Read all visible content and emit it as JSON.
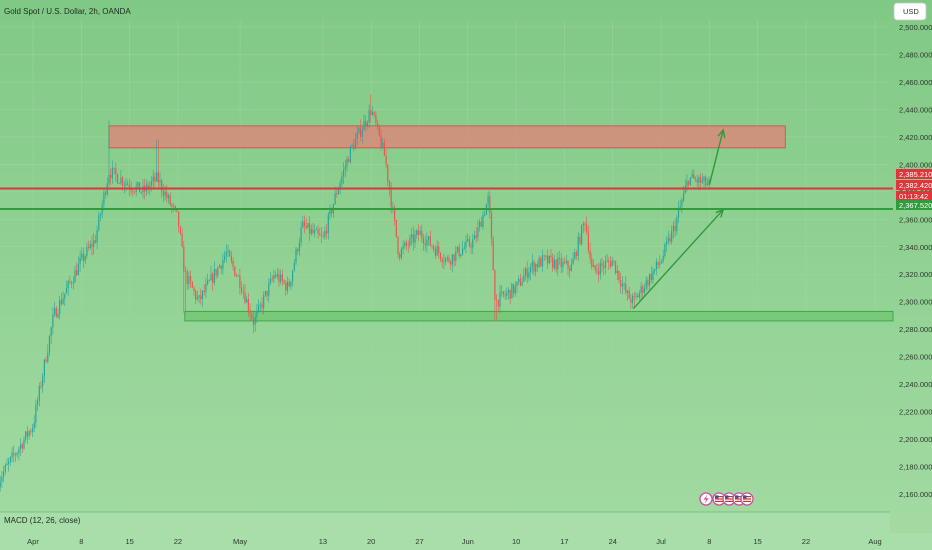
{
  "header": {
    "title": "Gold Spot / U.S. Dollar, 2h, OANDA",
    "currency_button": "USD"
  },
  "indicator": {
    "label": "MACD (12, 26, close)"
  },
  "price_tags": [
    {
      "value": "2,385.210",
      "color": "#e0353b"
    },
    {
      "value": "2,382.420",
      "color": "#e0353b"
    },
    {
      "value": "01:13:42",
      "color": "#e0353b"
    },
    {
      "value": "2,367.520",
      "color": "#2f9e3a"
    }
  ],
  "event_icons": [
    "lightning-icon",
    "us-flag-icon",
    "us-flag-icon",
    "us-flag-icon",
    "us-flag-icon"
  ],
  "colors": {
    "background": "#8ccf8e",
    "resistance_zone": "#d9897a",
    "support_zone": "#74c977",
    "resistance_line": "#e0353b",
    "support_line": "#2f9e3a",
    "arrow": "#2e9a3c",
    "up_candle": "#26a69a",
    "down_candle": "#ef5350"
  },
  "chart_data": {
    "type": "candlestick",
    "title": "Gold Spot / U.S. Dollar, 2h, OANDA",
    "y_ticks": [
      2160,
      2180,
      2200,
      2220,
      2240,
      2260,
      2280,
      2300,
      2320,
      2340,
      2360,
      2380,
      2400,
      2420,
      2440,
      2460,
      2480,
      2500
    ],
    "y_tick_labels": [
      "2,160.000",
      "2,180.000",
      "2,200.000",
      "2,220.000",
      "2,240.000",
      "2,260.000",
      "2,280.000",
      "2,300.000",
      "2,320.000",
      "2,340.000",
      "2,360.000",
      "2,380.000",
      "2,400.000",
      "2,420.000",
      "2,440.000",
      "2,460.000",
      "2,480.000",
      "2,500.000"
    ],
    "ylim": [
      2153,
      2510
    ],
    "x_ticks": [
      "Apr",
      "8",
      "15",
      "22",
      "May",
      "13",
      "20",
      "27",
      "Jun",
      "10",
      "17",
      "24",
      "Jul",
      "8",
      "15",
      "22",
      "Aug"
    ],
    "x_tick_dates": [
      "2024-04-01",
      "2024-04-08",
      "2024-04-15",
      "2024-04-22",
      "2024-05-01",
      "2024-05-13",
      "2024-05-20",
      "2024-05-27",
      "2024-06-03",
      "2024-06-10",
      "2024-06-17",
      "2024-06-24",
      "2024-07-01",
      "2024-07-08",
      "2024-07-15",
      "2024-07-22",
      "2024-08-01"
    ],
    "path": [
      [
        "2024-03-27",
        2170
      ],
      [
        "2024-04-01",
        2210
      ],
      [
        "2024-04-04",
        2290
      ],
      [
        "2024-04-08",
        2330
      ],
      [
        "2024-04-10",
        2345
      ],
      [
        "2024-04-12",
        2395
      ],
      [
        "2024-04-15",
        2385
      ],
      [
        "2024-04-17",
        2380
      ],
      [
        "2024-04-19",
        2390
      ],
      [
        "2024-04-22",
        2360
      ],
      [
        "2024-04-23",
        2320
      ],
      [
        "2024-04-25",
        2300
      ],
      [
        "2024-04-29",
        2335
      ],
      [
        "2024-05-01",
        2315
      ],
      [
        "2024-05-03",
        2285
      ],
      [
        "2024-05-06",
        2320
      ],
      [
        "2024-05-08",
        2310
      ],
      [
        "2024-05-10",
        2355
      ],
      [
        "2024-05-13",
        2345
      ],
      [
        "2024-05-15",
        2380
      ],
      [
        "2024-05-17",
        2410
      ],
      [
        "2024-05-20",
        2440
      ],
      [
        "2024-05-22",
        2405
      ],
      [
        "2024-05-24",
        2335
      ],
      [
        "2024-05-27",
        2350
      ],
      [
        "2024-05-29",
        2340
      ],
      [
        "2024-05-31",
        2330
      ],
      [
        "2024-06-04",
        2345
      ],
      [
        "2024-06-06",
        2375
      ],
      [
        "2024-06-07",
        2300
      ],
      [
        "2024-06-10",
        2310
      ],
      [
        "2024-06-12",
        2325
      ],
      [
        "2024-06-14",
        2330
      ],
      [
        "2024-06-18",
        2325
      ],
      [
        "2024-06-20",
        2360
      ],
      [
        "2024-06-21",
        2322
      ],
      [
        "2024-06-24",
        2330
      ],
      [
        "2024-06-26",
        2305
      ],
      [
        "2024-06-27",
        2300
      ],
      [
        "2024-07-01",
        2330
      ],
      [
        "2024-07-03",
        2355
      ],
      [
        "2024-07-05",
        2390
      ],
      [
        "2024-07-08",
        2385
      ]
    ],
    "high_points": [
      [
        "2024-04-12",
        2432
      ],
      [
        "2024-04-19",
        2418
      ],
      [
        "2024-05-20",
        2451
      ]
    ],
    "low_points": [
      [
        "2024-04-23",
        2292
      ],
      [
        "2024-05-03",
        2277
      ],
      [
        "2024-06-07",
        2286
      ],
      [
        "2024-06-27",
        2295
      ]
    ],
    "resistance_zone": {
      "from": "2024-04-12",
      "to": "2024-07-19",
      "low": 2412,
      "high": 2428
    },
    "support_zone": {
      "from": "2024-04-23",
      "to": "2024-08-05",
      "low": 2286,
      "high": 2293
    },
    "resistance_line": 2382.42,
    "support_line": 2367.52,
    "trend_arrow": {
      "from": [
        "2024-06-27",
        2295
      ],
      "to": [
        "2024-07-10",
        2367
      ]
    },
    "projection_arrow": {
      "from": [
        "2024-07-08",
        2385
      ],
      "to": [
        "2024-07-10",
        2425
      ]
    }
  }
}
